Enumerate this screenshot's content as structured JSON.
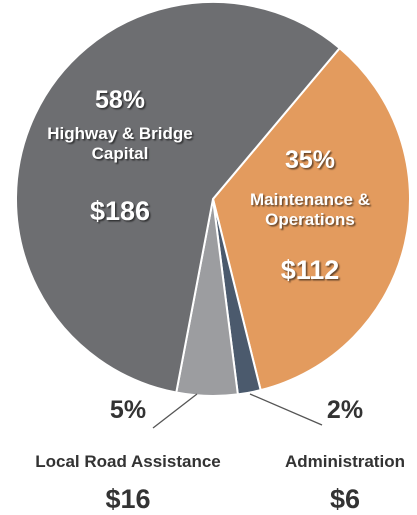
{
  "chart_data": {
    "type": "pie",
    "categories": [
      "Highway & Bridge Capital",
      "Maintenance & Operations",
      "Administration",
      "Local Road Assistance"
    ],
    "values": [
      186,
      112,
      6,
      16
    ],
    "value_labels": [
      "$186",
      "$112",
      "$6",
      "$16"
    ],
    "percents": [
      58,
      35,
      2,
      5
    ],
    "percent_labels": [
      "58%",
      "35%",
      "2%",
      "5%"
    ],
    "colors": [
      "#6d6e71",
      "#e39b5e",
      "#4b5a6d",
      "#9c9da0"
    ]
  }
}
